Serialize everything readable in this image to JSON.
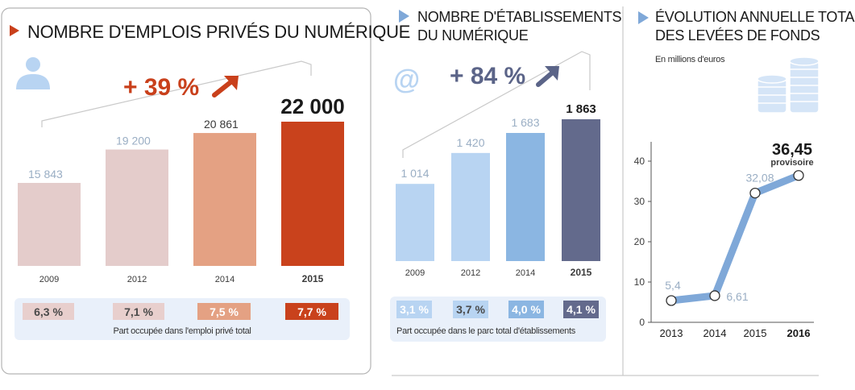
{
  "colors": {
    "red_title": "#c9401b",
    "panel_border": "#b5b5b5",
    "band_bg": "#e9f0fa",
    "text_dark": "#1a1a1a",
    "text_label": "#3a3a3a",
    "value_light": "#9aaec4",
    "line_blue": "#7fa8d8",
    "employment_bars": [
      "#e4cccb",
      "#e4cccb",
      "#e4a183",
      "#c9421c"
    ],
    "establishment_bars": [
      "#b8d4f2",
      "#b8d4f2",
      "#8bb6e2",
      "#636a8c"
    ]
  },
  "chart_data": [
    {
      "type": "bar",
      "title": "NOMBRE D'EMPLOIS PRIVÉS DU NUMÉRIQUE",
      "categories": [
        "2009",
        "2012",
        "2014",
        "2015"
      ],
      "values": [
        15843,
        19200,
        20861,
        22000
      ],
      "value_labels": [
        "15 843",
        "19 200",
        "20 861",
        "22 000"
      ],
      "growth_label": "+ 39 %",
      "shares": [
        "6,3 %",
        "7,1 %",
        "7,5 %",
        "7,7 %"
      ],
      "share_caption": "Part occupée dans l'emploi privé total",
      "icon": "person-icon"
    },
    {
      "type": "bar",
      "title_lines": [
        "NOMBRE D'ÉTABLISSEMENTS",
        "DU NUMÉRIQUE"
      ],
      "categories": [
        "2009",
        "2012",
        "2014",
        "2015"
      ],
      "values": [
        1014,
        1420,
        1683,
        1863
      ],
      "value_labels": [
        "1 014",
        "1 420",
        "1 683",
        "1 863"
      ],
      "growth_label": "+ 84 %",
      "shares": [
        "3,1 %",
        "3,7 %",
        "4,0 %",
        "4,1 %"
      ],
      "share_caption": "Part occupée dans le parc total d'établissements",
      "icon_glyph": "@"
    },
    {
      "type": "line",
      "title_lines": [
        "ÉVOLUTION ANNUELLE TOTALE",
        "DES LEVÉES DE FONDS"
      ],
      "unit": "En millions d'euros",
      "categories": [
        "2013",
        "2014",
        "2015",
        "2016"
      ],
      "values": [
        5.4,
        6.61,
        32.08,
        36.45
      ],
      "value_labels": [
        "5,4",
        "6,61",
        "32,08",
        "36,45"
      ],
      "last_note": "provisoire",
      "yticks": [
        "0",
        "10",
        "20",
        "30",
        "40"
      ],
      "ylim": [
        0,
        40
      ]
    }
  ]
}
